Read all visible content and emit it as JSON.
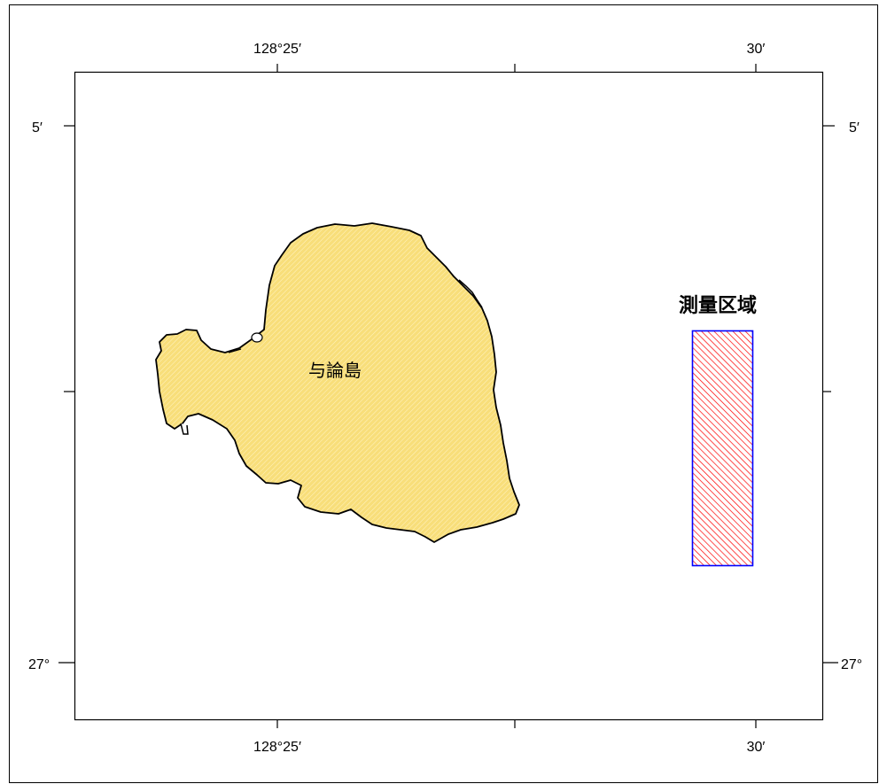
{
  "map": {
    "top_labels": [
      "128°25′",
      "30′"
    ],
    "bottom_labels": [
      "128°25′",
      "30′"
    ],
    "left_labels": [
      "5′",
      "27°"
    ],
    "right_labels": [
      "5′",
      "27°"
    ],
    "island_name": "与論島",
    "survey_area_label": "測量区域"
  },
  "colors": {
    "island_fill": "#f8de7a",
    "island_outline": "#000000",
    "survey_border": "#0000ff",
    "survey_hatch": "#ff0000",
    "frame": "#000000"
  }
}
